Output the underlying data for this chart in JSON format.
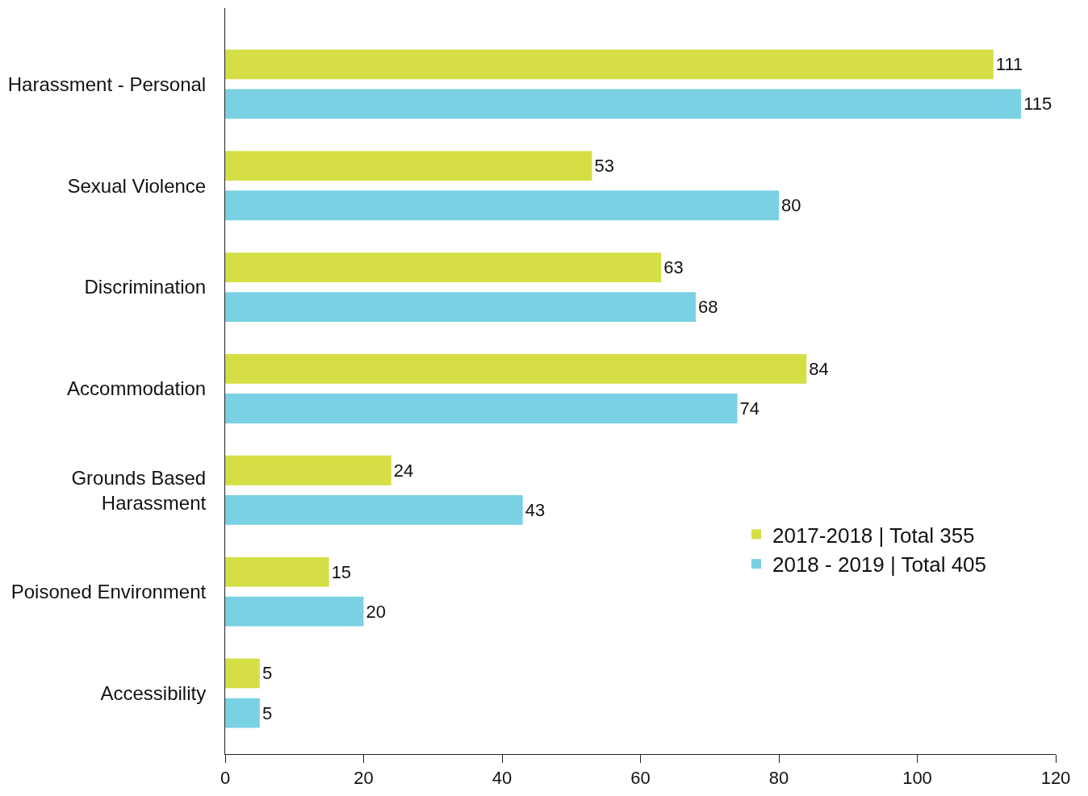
{
  "chart_data": {
    "type": "bar",
    "orientation": "horizontal",
    "categories": [
      "Harassment - Personal",
      "Sexual Violence",
      "Discrimination",
      "Accommodation",
      "Grounds Based\nHarassment",
      "Poisoned Environment",
      "Accessibility"
    ],
    "series": [
      {
        "name": "2017-2018 | Total 355",
        "color": "#d5df45",
        "values": [
          111,
          53,
          63,
          84,
          24,
          15,
          5
        ]
      },
      {
        "name": "2018 - 2019 | Total 405",
        "color": "#79d1e3",
        "values": [
          115,
          80,
          68,
          74,
          43,
          20,
          5
        ]
      }
    ],
    "xlim": [
      0,
      120
    ],
    "xticks": [
      0,
      20,
      40,
      60,
      80,
      100,
      120
    ],
    "legend": "bottom right",
    "data_labels": true
  }
}
